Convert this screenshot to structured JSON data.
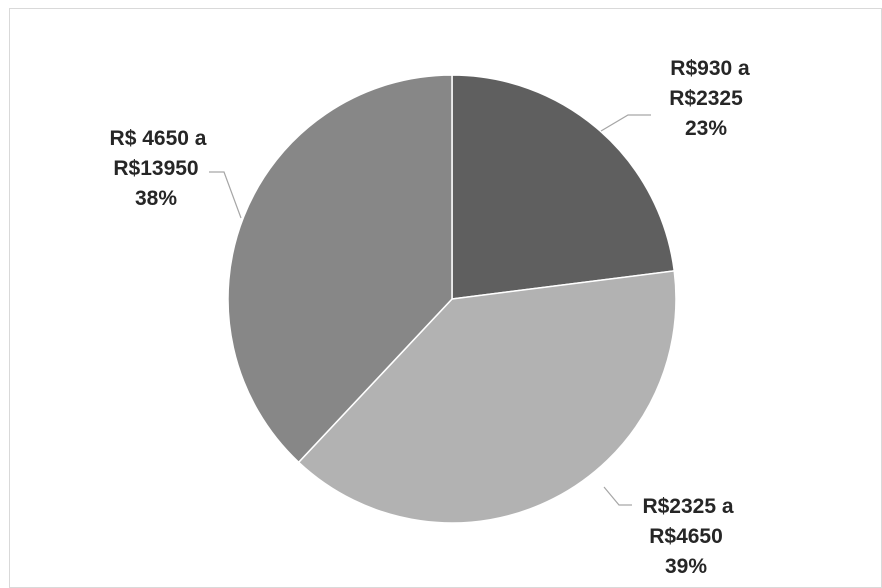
{
  "chart_data": {
    "type": "pie",
    "title": "",
    "slices": [
      {
        "label_line1": "R$930 a",
        "label_line2": "R$2325",
        "percent_label": "23%",
        "value": 23,
        "color": "#5f5f5f"
      },
      {
        "label_line1": "R$2325 a",
        "label_line2": "R$4650",
        "percent_label": "39%",
        "value": 39,
        "color": "#b2b2b2"
      },
      {
        "label_line1": "R$ 4650 a",
        "label_line2": "R$13950",
        "percent_label": "38%",
        "value": 38,
        "color": "#878787"
      }
    ],
    "start_angle": "top (12 o'clock), clockwise",
    "legend": "none; data labels with leader lines"
  }
}
